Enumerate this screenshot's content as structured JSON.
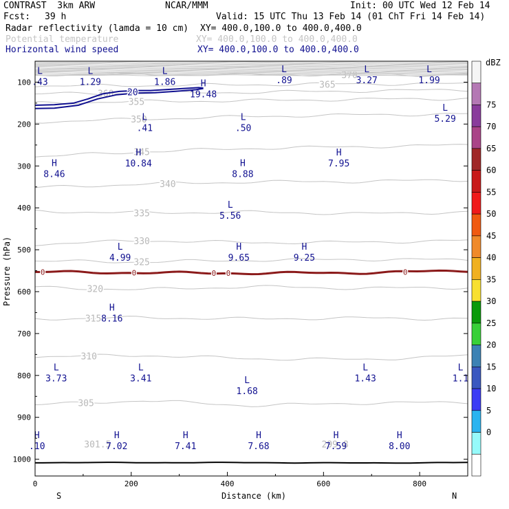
{
  "header": {
    "model": "CONTRAST  3km ARW",
    "org": "NCAR/MMM",
    "init": "Init: 00 UTC Wed 12 Feb 14",
    "fcst_label": "Fcst:",
    "fcst_value": "39 h",
    "valid": "Valid: 15 UTC Thu 13 Feb 14 (01 ChT Fri 14 Feb 14)"
  },
  "fields": [
    {
      "name": "Radar reflectivity (lamda = 10 cm)",
      "xy": "XY= 400.0,100.0 to 400.0,400.0",
      "color": "#000000"
    },
    {
      "name": "Potential temperature",
      "xy": "XY= 400.0,100.0 to 400.0,400.0",
      "color": "#c4c4c4"
    },
    {
      "name": "Horizontal wind speed",
      "xy": "XY= 400.0,100.0 to 400.0,400.0",
      "color": "#101090"
    }
  ],
  "chart_data": {
    "type": "contour",
    "xlabel": "Distance (km)",
    "ylabel": "Pressure (hPa)",
    "xlim": [
      0,
      900
    ],
    "ylim": [
      1040,
      50
    ],
    "x_ticks": [
      0,
      200,
      400,
      600,
      800
    ],
    "y_ticks": [
      100,
      200,
      300,
      400,
      500,
      600,
      700,
      800,
      900,
      1000
    ],
    "x_end_labels": {
      "left": "S",
      "right": "N"
    },
    "colorbar": {
      "unit": "dBZ",
      "levels": [
        0,
        5,
        10,
        15,
        20,
        25,
        30,
        35,
        40,
        45,
        50,
        55,
        60,
        65,
        70,
        75
      ],
      "colors": [
        "#ffffff",
        "#96fafa",
        "#2ab4f0",
        "#3c3cf5",
        "#3a58c0",
        "#3c82b4",
        "#38d038",
        "#0a9a0a",
        "#f8e030",
        "#f0b020",
        "#f08a2a",
        "#f05a10",
        "#f01a1a",
        "#c81a1a",
        "#a02828",
        "#aa4488",
        "#8a3c9c",
        "#b478b4",
        "#f5f5f5"
      ]
    },
    "theta_contours": [
      {
        "value": "370",
        "p": [
          82,
          82,
          82,
          82,
          83
        ],
        "label_x": 654
      },
      {
        "value": "365",
        "p": [
          109,
          108,
          106,
          104,
          104
        ],
        "label_x": 608
      },
      {
        "value": "360",
        "p": [
          128,
          126,
          124,
          121,
          118
        ],
        "label_x": 147
      },
      {
        "value": "355",
        "p": [
          150,
          146,
          144,
          141,
          139
        ],
        "label_x": 211
      },
      {
        "value": "350",
        "p": [
          195,
          188,
          182,
          178,
          176
        ],
        "label_x": 216
      },
      {
        "value": "345",
        "p": [
          278,
          266,
          258,
          254,
          250
        ],
        "label_x": 222
      },
      {
        "value": "340",
        "p": [
          352,
          343,
          338,
          337,
          333
        ],
        "label_x": 276
      },
      {
        "value": "335",
        "p": [
          408,
          412,
          410,
          414,
          410
        ],
        "label_x": 222
      },
      {
        "value": "330",
        "p": [
          487,
          478,
          483,
          482,
          478
        ],
        "label_x": 222
      },
      {
        "value": "325",
        "p": [
          527,
          529,
          525,
          523,
          524
        ],
        "label_x": 222
      },
      {
        "value": "320",
        "p": [
          590,
          595,
          588,
          592,
          590
        ],
        "label_x": 125
      },
      {
        "value": "315",
        "p": [
          665,
          662,
          665,
          663,
          665
        ],
        "label_x": 121
      },
      {
        "value": "310",
        "p": [
          755,
          752,
          760,
          762,
          753
        ],
        "label_x": 112
      },
      {
        "value": "305",
        "p": [
          870,
          860,
          872,
          866,
          864
        ],
        "label_x": 106
      },
      {
        "value": "301.5",
        "label_x": 130,
        "label_p": 972
      },
      {
        "value": "299.8",
        "label_x": 624,
        "label_p": 972
      }
    ],
    "zero_dbz_line": {
      "p": [
        553,
        555,
        556,
        555,
        550
      ],
      "labels": [
        "0",
        "0",
        "0",
        "0",
        "0"
      ],
      "label_x": [
        16,
        206,
        372,
        402,
        770
      ]
    },
    "wind_extrema": [
      {
        "kind": "L",
        "value": ".43",
        "x": 10,
        "p": 80
      },
      {
        "kind": "L",
        "value": "1.29",
        "x": 115,
        "p": 80
      },
      {
        "kind": "L",
        "value": "1.86",
        "x": 270,
        "p": 80
      },
      {
        "kind": "L",
        "value": ".89",
        "x": 518,
        "p": 76
      },
      {
        "kind": "L",
        "value": "3.27",
        "x": 690,
        "p": 76
      },
      {
        "kind": "L",
        "value": "1.99",
        "x": 820,
        "p": 76
      },
      {
        "kind": "H",
        "value": "19.48",
        "x": 350,
        "p": 110
      },
      {
        "kind": "L",
        "value": ".41",
        "x": 228,
        "p": 190
      },
      {
        "kind": "L",
        "value": ".50",
        "x": 433,
        "p": 190
      },
      {
        "kind": "L",
        "value": "5.29",
        "x": 853,
        "p": 168
      },
      {
        "kind": "H",
        "value": "10.84",
        "x": 215,
        "p": 275
      },
      {
        "kind": "H",
        "value": "7.95",
        "x": 632,
        "p": 275
      },
      {
        "kind": "H",
        "value": "8.46",
        "x": 40,
        "p": 300
      },
      {
        "kind": "H",
        "value": "8.88",
        "x": 432,
        "p": 300
      },
      {
        "kind": "L",
        "value": "5.56",
        "x": 406,
        "p": 400
      },
      {
        "kind": "L",
        "value": "4.99",
        "x": 177,
        "p": 500
      },
      {
        "kind": "H",
        "value": "9.65",
        "x": 424,
        "p": 500
      },
      {
        "kind": "H",
        "value": "9.25",
        "x": 560,
        "p": 500
      },
      {
        "kind": "H",
        "value": "8.16",
        "x": 160,
        "p": 645
      },
      {
        "kind": "L",
        "value": "3.73",
        "x": 44,
        "p": 788
      },
      {
        "kind": "L",
        "value": "3.41",
        "x": 220,
        "p": 788
      },
      {
        "kind": "L",
        "value": "1.43",
        "x": 687,
        "p": 788
      },
      {
        "kind": "L",
        "value": "1.1",
        "x": 885,
        "p": 788
      },
      {
        "kind": "L",
        "value": "1.68",
        "x": 441,
        "p": 818
      },
      {
        "kind": "H",
        "value": ".10",
        "x": 4,
        "p": 950
      },
      {
        "kind": "H",
        "value": "7.02",
        "x": 170,
        "p": 950
      },
      {
        "kind": "H",
        "value": "7.41",
        "x": 313,
        "p": 950
      },
      {
        "kind": "H",
        "value": "7.68",
        "x": 465,
        "p": 950
      },
      {
        "kind": "H",
        "value": "7.59",
        "x": 626,
        "p": 950
      },
      {
        "kind": "H",
        "value": "8.00",
        "x": 758,
        "p": 950
      }
    ],
    "wind_contour_20": {
      "value": "20",
      "label_x": 203,
      "label_p": 123
    }
  }
}
